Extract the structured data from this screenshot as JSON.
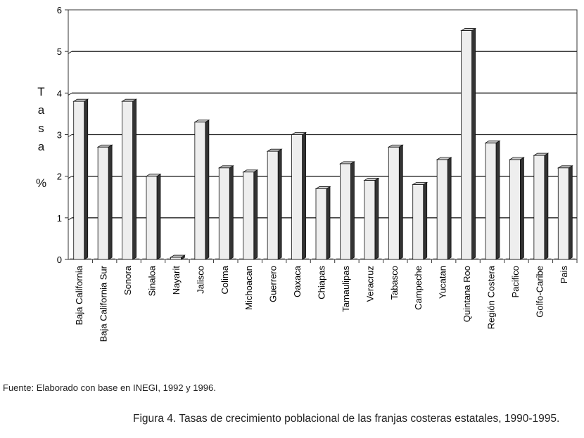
{
  "chart_data": {
    "type": "bar",
    "title": "",
    "xlabel": "",
    "ylabel": "Tasa %",
    "ylabel_chars": [
      "T",
      "a",
      "s",
      "a",
      "%"
    ],
    "ylim": [
      0,
      6
    ],
    "yticks": [
      0,
      1,
      2,
      3,
      4,
      5,
      6
    ],
    "grid": true,
    "categories": [
      "Baja California",
      "Baja California Sur",
      "Sonora",
      "Sinaloa",
      "Nayarit",
      "Jalisco",
      "Colima",
      "Michoacan",
      "Guerrero",
      "Oaxaca",
      "Chiapas",
      "Tamaulipas",
      "Veracruz",
      "Tabasco",
      "Campeche",
      "Yucatan",
      "Quintana Roo",
      "Región Costera",
      "Pacifico",
      "Golfo-Caribe",
      "Pais"
    ],
    "values": [
      3.8,
      2.7,
      3.8,
      2.0,
      0.05,
      3.3,
      2.2,
      2.1,
      2.6,
      3.0,
      1.7,
      2.3,
      1.9,
      2.7,
      1.8,
      2.4,
      5.5,
      2.8,
      2.4,
      2.5,
      2.2
    ],
    "colors": {
      "bar_face": "#eeeeee",
      "bar_side": "#333333",
      "bar_top": "#cccccc",
      "grid": "#222222"
    }
  },
  "source": "Fuente: Elaborado con base en INEGI, 1992 y 1996.",
  "caption": "Figura 4. Tasas de crecimiento poblacional de las franjas costeras estatales, 1990-1995."
}
